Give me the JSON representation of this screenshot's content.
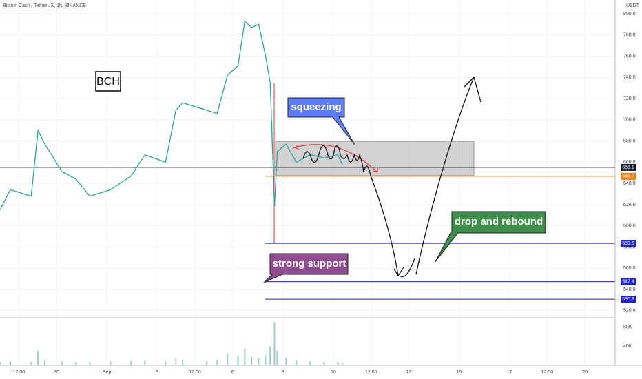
{
  "header": {
    "symbol": "Bitcoin Cash / TetherUS, 1h, BINANCE",
    "currency": "USDT"
  },
  "chart_data": {
    "type": "line",
    "color": "#26a69a",
    "grid": true,
    "x": [
      -4.25,
      -3.84,
      -3.01,
      -2.74,
      -2.47,
      -1.78,
      -1.23,
      -0.68,
      0.14,
      0.96,
      1.51,
      2.33,
      2.74,
      3.01,
      3.97,
      4.38,
      4.79,
      5.21,
      5.48,
      5.75,
      6.03,
      6.3,
      6.49,
      6.66,
      6.77,
      7.12,
      7.53,
      8.08,
      8.63,
      9.18,
      9.37
    ],
    "values": [
      615,
      634,
      628,
      690,
      677,
      651,
      644,
      628,
      634,
      647,
      667,
      660,
      709,
      716,
      709,
      706,
      742,
      751,
      793,
      787,
      790,
      761,
      735,
      618,
      670,
      677,
      660,
      667,
      664,
      667,
      657
    ],
    "xlim": [
      -4.25,
      20.2
    ],
    "xticks": [
      {
        "value": -3.5,
        "label": "12:00"
      },
      {
        "value": -2,
        "label": "30"
      },
      {
        "value": 0,
        "label": "Sep"
      },
      {
        "value": 2,
        "label": "3"
      },
      {
        "value": 3.5,
        "label": "12:00"
      },
      {
        "value": 5,
        "label": "6"
      },
      {
        "value": 7,
        "label": "8"
      },
      {
        "value": 9,
        "label": "10"
      },
      {
        "value": 10.5,
        "label": "12:00"
      },
      {
        "value": 12,
        "label": "13"
      },
      {
        "value": 14,
        "label": "15"
      },
      {
        "value": 16,
        "label": "17"
      },
      {
        "value": 17.5,
        "label": "12:00"
      },
      {
        "value": 19,
        "label": "20"
      }
    ],
    "ylim": [
      514,
      813
    ],
    "yticks": [
      {
        "value": 520,
        "label": "520.0"
      },
      {
        "value": 540,
        "label": "540.0"
      },
      {
        "value": 560,
        "label": "560.0"
      },
      {
        "value": 580,
        "label": "580.0"
      },
      {
        "value": 600,
        "label": "600.0"
      },
      {
        "value": 620,
        "label": "620.0"
      },
      {
        "value": 640,
        "label": "640.0"
      },
      {
        "value": 660,
        "label": "660.0"
      },
      {
        "value": 680,
        "label": "680.0"
      },
      {
        "value": 700,
        "label": "700.0"
      },
      {
        "value": 720,
        "label": "720.0"
      },
      {
        "value": 740,
        "label": "740.0"
      },
      {
        "value": 760,
        "label": "760.0"
      },
      {
        "value": 780,
        "label": "780.0"
      },
      {
        "value": 800,
        "label": "800.0"
      }
    ],
    "levels": [
      655.1,
      646.7,
      583.5,
      547.4,
      530.8
    ],
    "level_colors": [
      "#131722",
      "#f57c00",
      "#1e22d8",
      "#1e22d8",
      "#1e22d8"
    ],
    "volume": {
      "color": "#9ad0c8",
      "ylim": [
        0,
        100000
      ],
      "yticks": [
        {
          "value": 40000,
          "label": "40K"
        },
        {
          "value": 80000,
          "label": "80K"
        }
      ],
      "values": [
        6000,
        8000,
        7000,
        30000,
        12000,
        8000,
        6000,
        7000,
        8000,
        9000,
        10000,
        8000,
        15000,
        12000,
        9000,
        10000,
        25000,
        20000,
        35000,
        18000,
        15000,
        22000,
        40000,
        90000,
        30000,
        15000,
        10000,
        8000,
        7000,
        6000,
        5000
      ]
    }
  },
  "annotations": {
    "logo": "BCH",
    "squeezing": "squeezing",
    "support": "strong support",
    "rebound": "drop and rebound"
  }
}
